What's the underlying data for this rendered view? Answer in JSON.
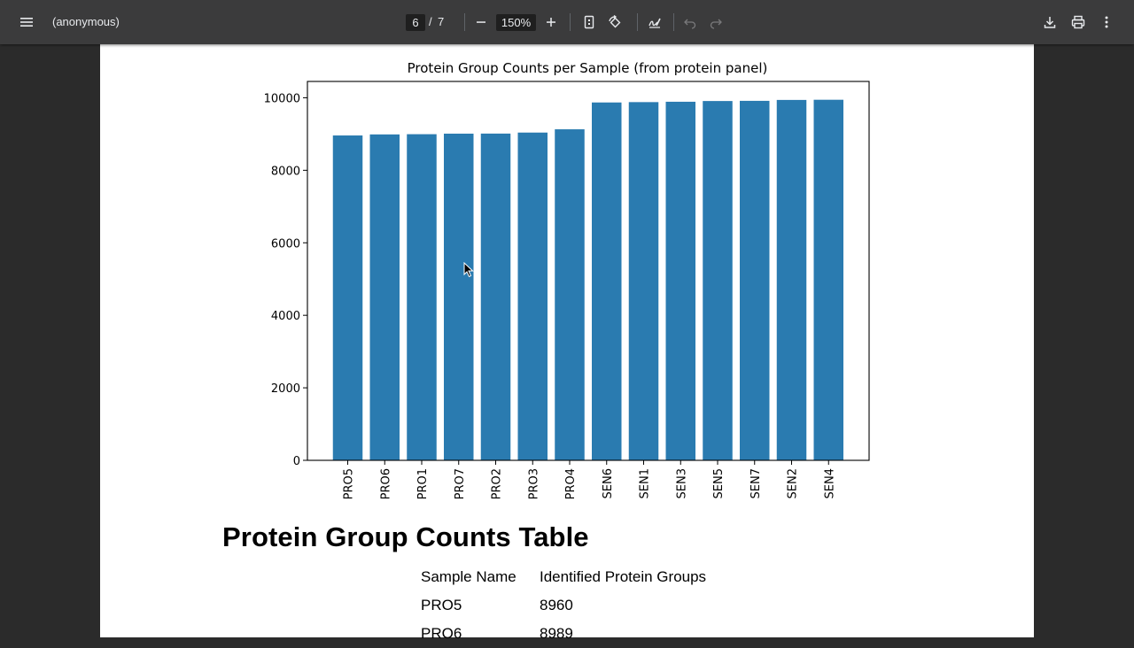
{
  "toolbar": {
    "menu_icon": "hamburger-menu-icon",
    "title": "(anonymous)",
    "current_page": "6",
    "page_separator": "/",
    "total_pages": "7",
    "zoom": "150%",
    "icons": [
      "zoom-out-icon",
      "zoom-in-icon",
      "fit-page-icon",
      "rotate-icon",
      "annotate-icon",
      "undo-icon",
      "redo-icon",
      "download-icon",
      "print-icon",
      "more-options-icon"
    ]
  },
  "chart_data": {
    "type": "bar",
    "title": "Protein Group Counts per Sample (from protein panel)",
    "xlabel": "",
    "ylabel": "",
    "categories": [
      "PRO5",
      "PRO6",
      "PRO1",
      "PRO7",
      "PRO2",
      "PRO3",
      "PRO4",
      "SEN6",
      "SEN1",
      "SEN3",
      "SEN5",
      "SEN7",
      "SEN2",
      "SEN4"
    ],
    "values": [
      8960,
      8989,
      8995,
      9010,
      9012,
      9040,
      9130,
      9870,
      9880,
      9890,
      9910,
      9915,
      9940,
      9945
    ],
    "ylim": [
      0,
      10450
    ],
    "yticks": [
      0,
      2000,
      4000,
      6000,
      8000,
      10000
    ],
    "bar_color": "#2a7bb0",
    "grid": false
  },
  "table": {
    "heading": "Protein Group Counts Table",
    "columns": [
      "Sample Name",
      "Identified Protein Groups"
    ],
    "rows": [
      [
        "PRO5",
        "8960"
      ],
      [
        "PRO6",
        "8989"
      ]
    ]
  }
}
